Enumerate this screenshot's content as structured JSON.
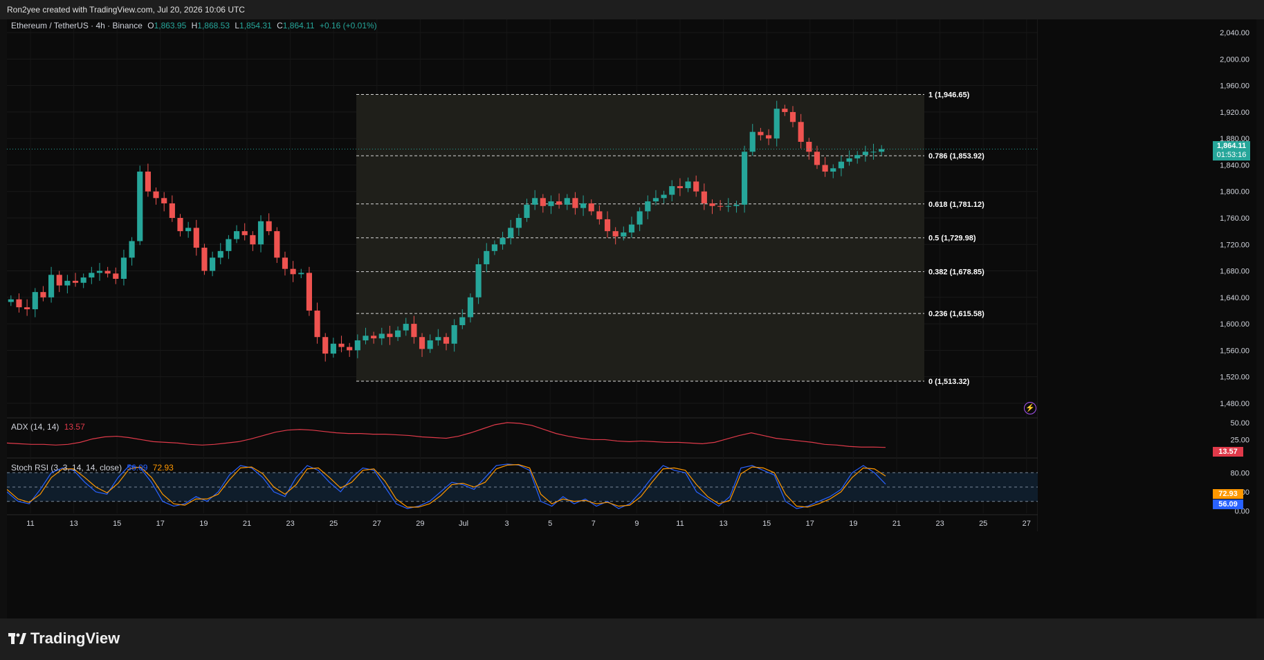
{
  "header": {
    "credit": "Ron2yee created with TradingView.com, Jul 20, 2026 10:06 UTC"
  },
  "legend": {
    "symbol": "Ethereum / TetherUS · 4h · Binance",
    "o_label": "O",
    "o_value": "1,863.95",
    "h_label": "H",
    "h_value": "1,868.53",
    "l_label": "L",
    "l_value": "1,854.31",
    "c_label": "C",
    "c_value": "1,864.11",
    "change": "+0.16 (+0.01%)"
  },
  "last_price": {
    "value": "1,864.11",
    "countdown": "01:53:16"
  },
  "adx_panel": {
    "label": "ADX (14, 14)",
    "value": "13.57"
  },
  "stoch_panel": {
    "label": "Stoch RSI (3, 3, 14, 14, close)",
    "k_value": "56.09",
    "d_value": "72.93"
  },
  "footer": {
    "brand": "TradingView"
  },
  "colors": {
    "up": "#26a69a",
    "down": "#ef5350",
    "adx": "#e03a4a",
    "stoch_k": "#2962ff",
    "stoch_d": "#ff9800"
  },
  "chart_data": [
    {
      "type": "candlestick",
      "title": "Ethereum / TetherUS · 4h · Binance",
      "ylim": [
        1460,
        2060
      ],
      "y_ticks": [
        "2,040.00",
        "2,000.00",
        "1,960.00",
        "1,920.00",
        "1,880.00",
        "1,840.00",
        "1,800.00",
        "1,760.00",
        "1,720.00",
        "1,680.00",
        "1,640.00",
        "1,600.00",
        "1,560.00",
        "1,520.00",
        "1,480.00"
      ],
      "x_ticks": [
        "11",
        "13",
        "15",
        "17",
        "19",
        "21",
        "23",
        "25",
        "27",
        "29",
        "Jul",
        "3",
        "5",
        "7",
        "9",
        "11",
        "13",
        "15",
        "17",
        "19",
        "21",
        "23",
        "25",
        "27"
      ],
      "series": [
        {
          "name": "closes",
          "values": [
            1637,
            1625,
            1622,
            1648,
            1640,
            1674,
            1658,
            1665,
            1662,
            1670,
            1677,
            1680,
            1676,
            1668,
            1700,
            1725,
            1830,
            1800,
            1790,
            1782,
            1760,
            1740,
            1745,
            1715,
            1680,
            1700,
            1710,
            1728,
            1740,
            1734,
            1720,
            1755,
            1740,
            1700,
            1683,
            1675,
            1677,
            1620,
            1580,
            1555,
            1570,
            1565,
            1560,
            1575,
            1582,
            1578,
            1585,
            1580,
            1590,
            1600,
            1580,
            1562,
            1575,
            1580,
            1570,
            1598,
            1610,
            1640,
            1690,
            1710,
            1720,
            1730,
            1745,
            1760,
            1780,
            1790,
            1778,
            1785,
            1780,
            1790,
            1775,
            1782,
            1770,
            1758,
            1740,
            1732,
            1738,
            1750,
            1770,
            1785,
            1790,
            1795,
            1808,
            1805,
            1815,
            1800,
            1782,
            1778,
            1777,
            1778,
            1780,
            1860,
            1890,
            1885,
            1880,
            1925,
            1920,
            1905,
            1875,
            1860,
            1840,
            1830,
            1835,
            1845,
            1850,
            1855,
            1860,
            1860,
            1864
          ]
        }
      ]
    },
    {
      "type": "line",
      "title": "ADX (14, 14)",
      "y_ticks": [
        "50.00",
        "25.00"
      ],
      "ylim": [
        0,
        55
      ],
      "series": [
        {
          "name": "ADX",
          "values": [
            20,
            19,
            18,
            18,
            17,
            18,
            21,
            26,
            29,
            30,
            28,
            25,
            22,
            21,
            20,
            18,
            17,
            18,
            20,
            22,
            26,
            31,
            36,
            39,
            40,
            39,
            37,
            35,
            34,
            34,
            33,
            33,
            32,
            31,
            29,
            28,
            27,
            30,
            35,
            41,
            47,
            50,
            49,
            46,
            40,
            34,
            30,
            27,
            25,
            25,
            23,
            22,
            23,
            22,
            21,
            21,
            20,
            19,
            21,
            26,
            31,
            35,
            31,
            27,
            25,
            23,
            21,
            18,
            17,
            15,
            14,
            14,
            13.57
          ]
        }
      ]
    },
    {
      "type": "line",
      "title": "Stoch RSI (3, 3, 14, 14, close)",
      "y_ticks": [
        "80.00",
        "40.00",
        "0.00"
      ],
      "ylim": [
        -5,
        105
      ],
      "series": [
        {
          "name": "K",
          "values": [
            40,
            20,
            15,
            45,
            80,
            90,
            85,
            60,
            40,
            35,
            70,
            95,
            90,
            60,
            20,
            10,
            15,
            30,
            20,
            40,
            75,
            95,
            90,
            70,
            40,
            30,
            70,
            95,
            85,
            60,
            40,
            70,
            90,
            85,
            50,
            15,
            5,
            10,
            20,
            40,
            60,
            55,
            45,
            70,
            95,
            98,
            96,
            85,
            20,
            10,
            30,
            15,
            25,
            10,
            20,
            5,
            15,
            40,
            70,
            95,
            85,
            80,
            40,
            25,
            10,
            30,
            90,
            95,
            85,
            75,
            20,
            5,
            10,
            20,
            30,
            45,
            80,
            95,
            80,
            56.09
          ]
        },
        {
          "name": "D",
          "values": [
            45,
            25,
            18,
            35,
            70,
            88,
            88,
            70,
            50,
            38,
            58,
            88,
            92,
            70,
            35,
            15,
            12,
            25,
            25,
            35,
            65,
            90,
            92,
            78,
            50,
            35,
            55,
            88,
            90,
            70,
            48,
            60,
            85,
            88,
            62,
            25,
            8,
            8,
            15,
            32,
            55,
            58,
            50,
            60,
            88,
            96,
            97,
            90,
            35,
            15,
            25,
            20,
            22,
            15,
            18,
            10,
            12,
            30,
            60,
            88,
            90,
            85,
            55,
            30,
            15,
            22,
            78,
            92,
            90,
            80,
            35,
            10,
            8,
            15,
            25,
            40,
            70,
            90,
            88,
            72.93
          ]
        }
      ]
    },
    {
      "type": "fibonacci",
      "levels": [
        {
          "label": "1 (1,946.65)",
          "price": 1946.65
        },
        {
          "label": "0.786 (1,853.92)",
          "price": 1853.92
        },
        {
          "label": "0.618 (1,781.12)",
          "price": 1781.12
        },
        {
          "label": "0.5 (1,729.98)",
          "price": 1729.98
        },
        {
          "label": "0.382 (1,678.85)",
          "price": 1678.85
        },
        {
          "label": "0.236 (1,615.58)",
          "price": 1615.58
        },
        {
          "label": "0 (1,513.32)",
          "price": 1513.32
        }
      ]
    }
  ]
}
